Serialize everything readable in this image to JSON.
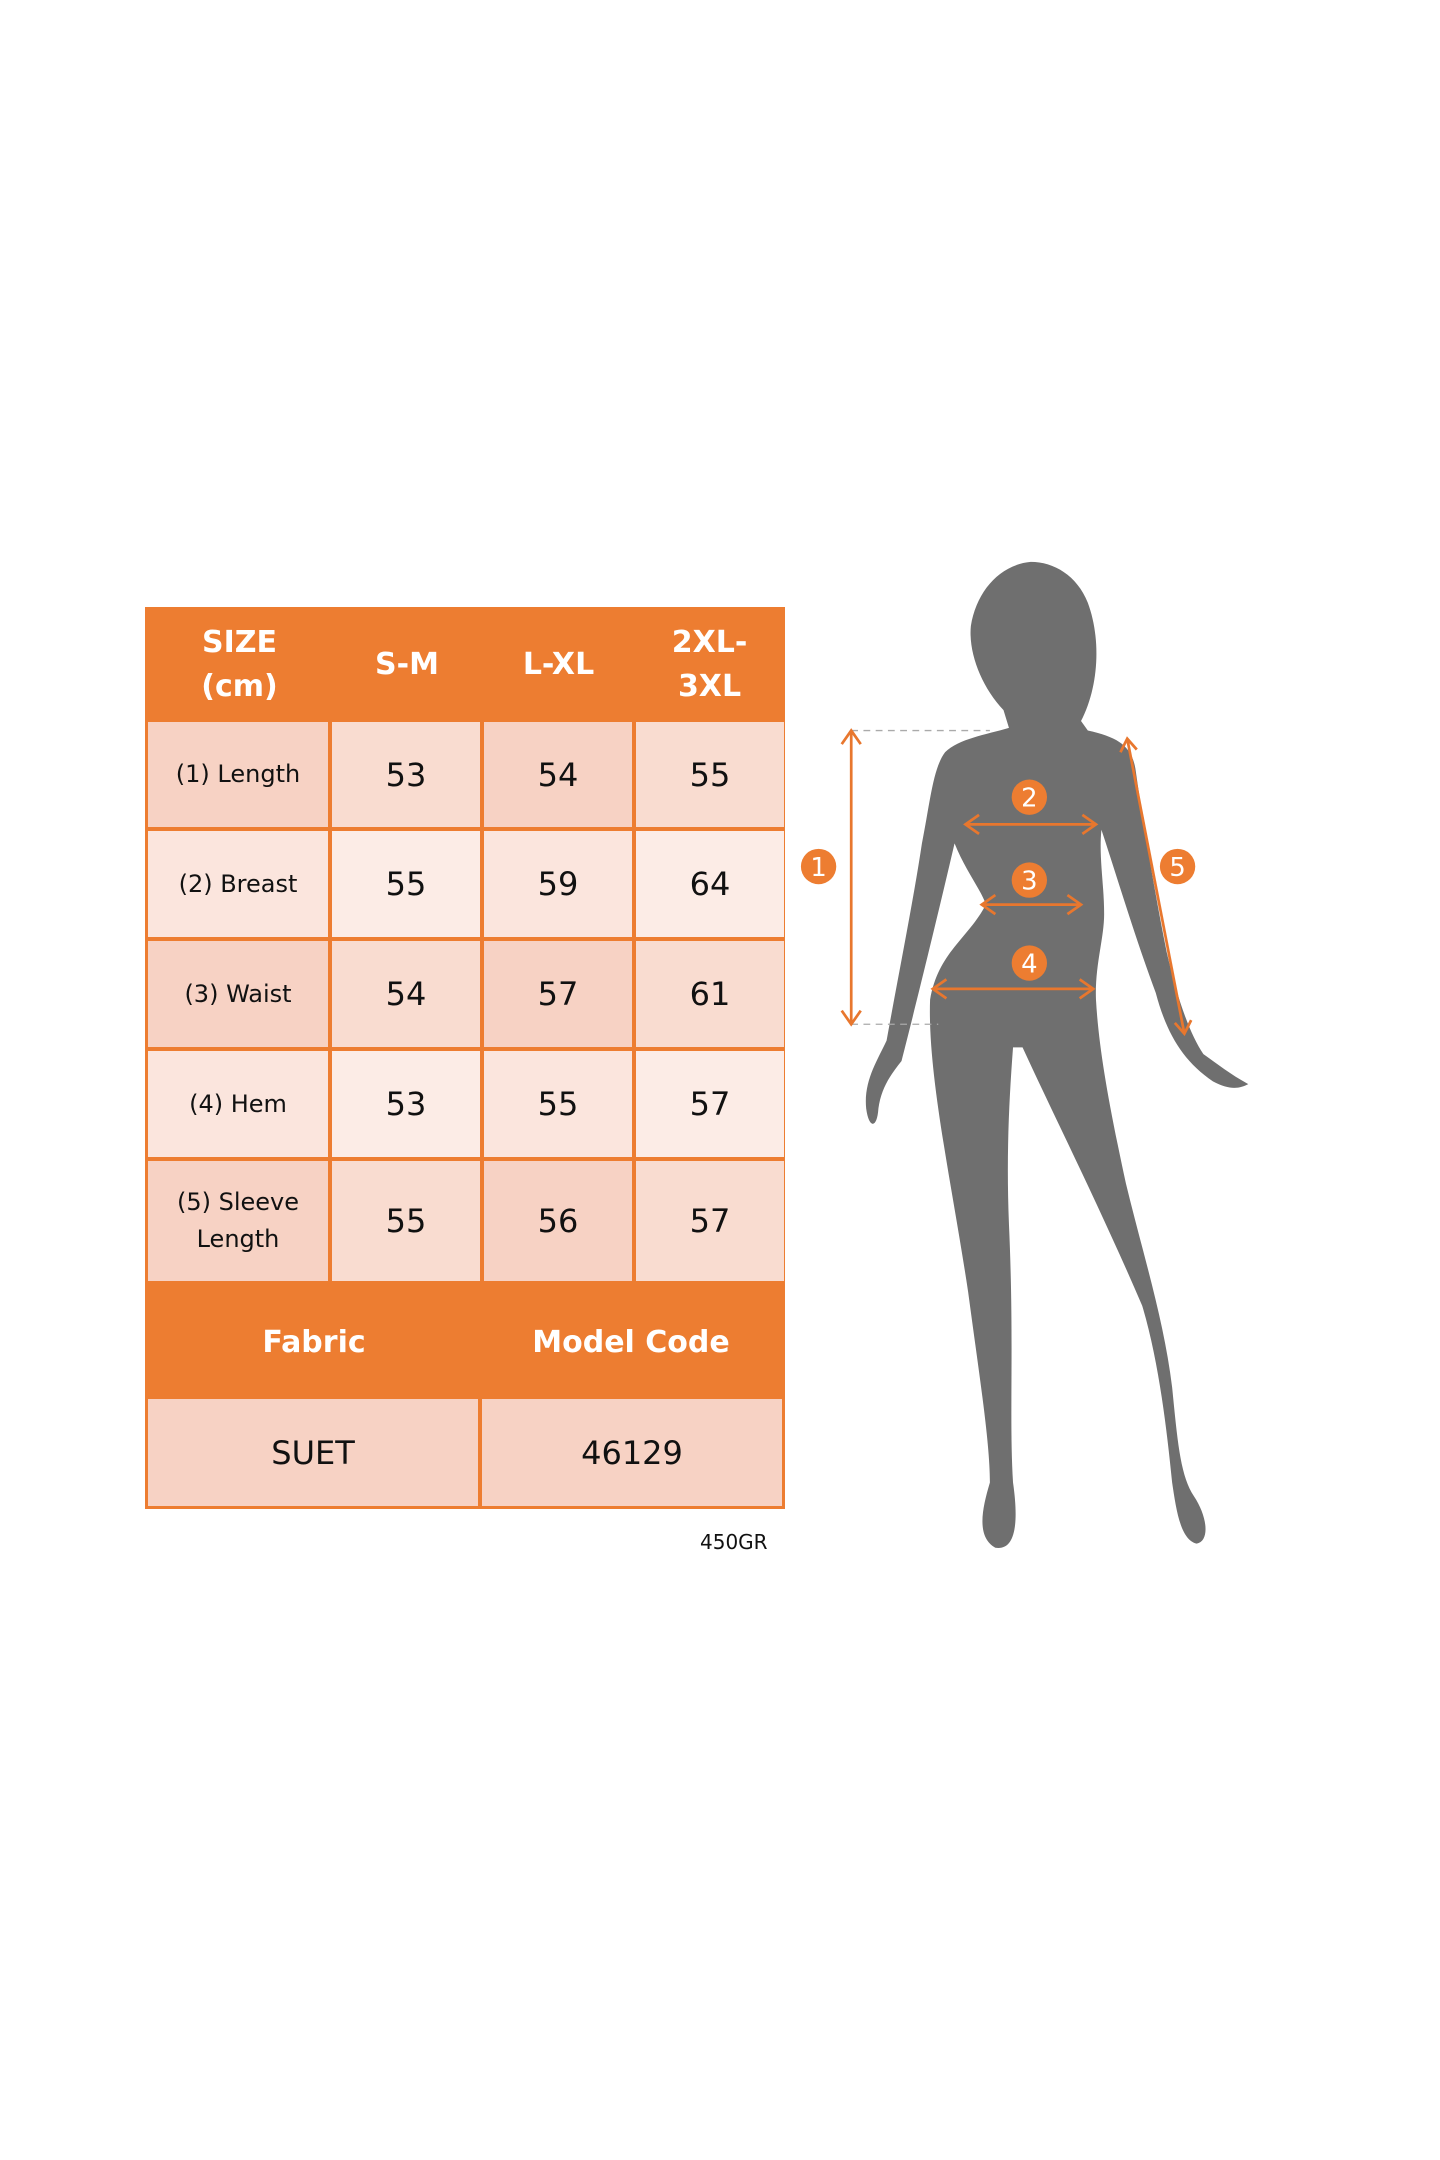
{
  "size_table": {
    "header": [
      "SIZE (cm)",
      "S-M",
      "L-XL",
      "2XL-3XL"
    ],
    "header_lines": [
      [
        "SIZE",
        "(cm)"
      ],
      [
        "S-M"
      ],
      [
        "L-XL"
      ],
      [
        "2XL-",
        "3XL"
      ]
    ],
    "rows": [
      {
        "label": "(1) Length",
        "values": [
          "53",
          "54",
          "55"
        ]
      },
      {
        "label": "(2) Breast",
        "values": [
          "55",
          "59",
          "64"
        ]
      },
      {
        "label": "(3) Waist",
        "values": [
          "54",
          "57",
          "61"
        ]
      },
      {
        "label": "(4) Hem",
        "values": [
          "53",
          "55",
          "57"
        ]
      },
      {
        "label_lines": [
          "(5) Sleeve",
          "Length"
        ],
        "values": [
          "55",
          "56",
          "57"
        ]
      }
    ]
  },
  "info_table": {
    "headers": [
      "Fabric",
      "Model Code"
    ],
    "values": [
      "SUET",
      "46129"
    ]
  },
  "weight_note": "450GR",
  "figure": {
    "markers": [
      "1",
      "2",
      "3",
      "4",
      "5"
    ],
    "accent_color": "#ed7d31",
    "silhouette_color": "#6f6f6f"
  }
}
